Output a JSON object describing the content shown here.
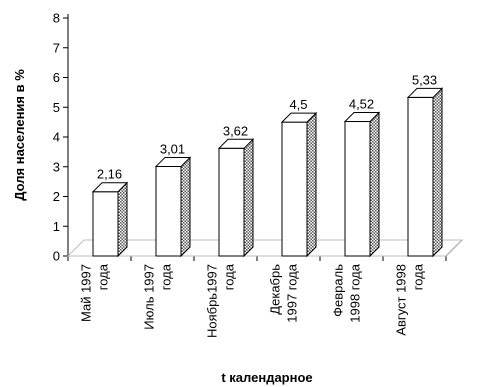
{
  "chart_data": {
    "type": "bar",
    "categories": [
      [
        "Май 1997",
        "года"
      ],
      [
        "Июль 1997",
        "года"
      ],
      [
        "Ноябрь1997",
        "года"
      ],
      [
        "Декабрь",
        "1997 года"
      ],
      [
        "Февраль",
        "1998 года"
      ],
      [
        "Август 1998",
        "года"
      ]
    ],
    "values": [
      2.16,
      3.01,
      3.62,
      4.5,
      4.52,
      5.33
    ],
    "data_labels": [
      "2,16",
      "3,01",
      "3,62",
      "4,5",
      "4,52",
      "5,33"
    ],
    "title": "",
    "xlabel": "t календарное",
    "ylabel": "Доля населения в %",
    "ylim": [
      0,
      8
    ],
    "yticks": [
      0,
      1,
      2,
      3,
      4,
      5,
      6,
      7,
      8
    ],
    "grid": false,
    "style": "3d-bars",
    "colors": {
      "bar_face": "#ffffff",
      "bar_side": "#7a7a7a",
      "axis": "#000000"
    }
  }
}
